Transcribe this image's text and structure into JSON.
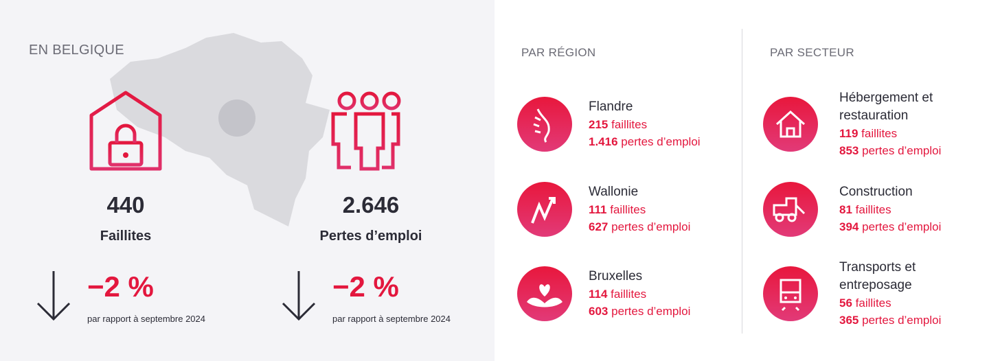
{
  "left": {
    "title": "EN BELGIQUE",
    "stats": [
      {
        "value": "440",
        "label": "Faillites",
        "change": "−2 %",
        "note": "par rapport à septembre 2024"
      },
      {
        "value": "2.646",
        "label": "Pertes d’emploi",
        "change": "−2 %",
        "note": "par rapport à septembre 2024"
      }
    ]
  },
  "regions": {
    "title": "PAR RÉGION",
    "items": [
      {
        "name": "Flandre",
        "faillites": "215",
        "faillites_label": "faillites",
        "emplois": "1.416",
        "emplois_label": "pertes d’emploi"
      },
      {
        "name": "Wallonie",
        "faillites": "111",
        "faillites_label": "faillites",
        "emplois": "627",
        "emplois_label": "pertes d’emploi"
      },
      {
        "name": "Bruxelles",
        "faillites": "114",
        "faillites_label": "faillites",
        "emplois": "603",
        "emplois_label": "pertes d’emploi"
      }
    ]
  },
  "sectors": {
    "title": "PAR SECTEUR",
    "items": [
      {
        "name": "Hébergement et restauration",
        "faillites": "119",
        "faillites_label": "faillites",
        "emplois": "853",
        "emplois_label": "pertes d’emploi"
      },
      {
        "name": "Construction",
        "faillites": "81",
        "faillites_label": "faillites",
        "emplois": "394",
        "emplois_label": "pertes d’emploi"
      },
      {
        "name": "Transports et entreposage",
        "faillites": "56",
        "faillites_label": "faillites",
        "emplois": "365",
        "emplois_label": "pertes d’emploi"
      }
    ]
  }
}
